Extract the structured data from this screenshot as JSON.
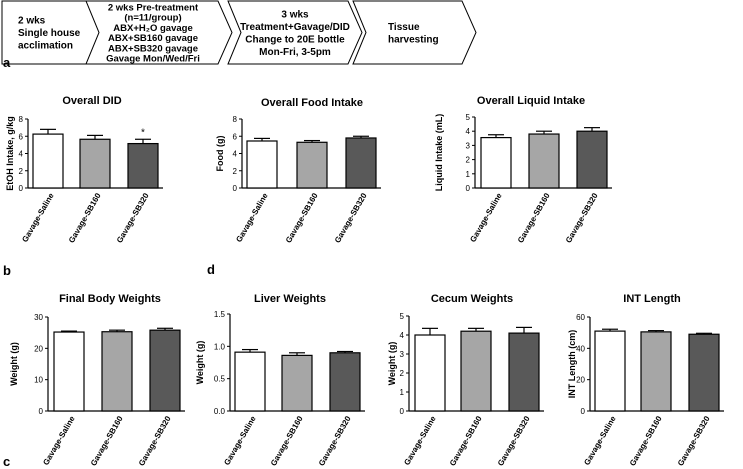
{
  "timeline": {
    "steps": [
      {
        "lines": [
          "2 wks",
          "Single house",
          "acclimation"
        ]
      },
      {
        "lines": [
          "2 wks Pre-treatment",
          "(n=11/group)",
          "ABX+H₂O gavage",
          "ABX+SB160 gavage",
          "ABX+SB320 gavage",
          "Gavage Mon/Wed/Fri"
        ]
      },
      {
        "lines": [
          "3 wks",
          "Treatment+Gavage/DID",
          "Change to 20E bottle",
          "Mon-Fri, 3-5pm"
        ]
      },
      {
        "lines": [
          "Tissue",
          "harvesting"
        ]
      }
    ]
  },
  "panel_letters": {
    "a": "a",
    "b": "b",
    "c": "c",
    "d": "d"
  },
  "colors": {
    "saline": "#ffffff",
    "sb160": "#a6a6a6",
    "sb320": "#595959",
    "stroke": "#000000"
  },
  "chart_data": [
    {
      "id": "did",
      "type": "bar",
      "title": "Overall DID",
      "xlabel": "",
      "ylabel": "EtOH Intake, g/kg",
      "categories": [
        "Gavage-Saline",
        "Gavage-SB160",
        "Gavage-SB320"
      ],
      "values": [
        6.25,
        5.65,
        5.15
      ],
      "errors": [
        0.55,
        0.45,
        0.5
      ],
      "ylim": [
        0,
        8
      ],
      "yticks": [
        "0",
        "2",
        "4",
        "6",
        "8"
      ],
      "annotations": [
        "",
        "",
        "*"
      ]
    },
    {
      "id": "food",
      "type": "bar",
      "title": "Overall Food Intake",
      "xlabel": "",
      "ylabel": "Food (g)",
      "categories": [
        "Gavage-Saline",
        "Gavage-SB160",
        "Gavage-SB320"
      ],
      "values": [
        5.45,
        5.3,
        5.8
      ],
      "errors": [
        0.3,
        0.2,
        0.2
      ],
      "ylim": [
        0,
        8
      ],
      "yticks": [
        "0",
        "2",
        "4",
        "6",
        "8"
      ],
      "annotations": [
        "",
        "",
        ""
      ]
    },
    {
      "id": "liquid",
      "type": "bar",
      "title": "Overall Liquid Intake",
      "xlabel": "",
      "ylabel": "Liquid Intake (mL)",
      "categories": [
        "Gavage-Saline",
        "Gavage-SB160",
        "Gavage-SB320"
      ],
      "values": [
        3.55,
        3.8,
        4.0
      ],
      "errors": [
        0.2,
        0.2,
        0.25
      ],
      "ylim": [
        0,
        5
      ],
      "yticks": [
        "0",
        "1",
        "2",
        "3",
        "4",
        "5"
      ],
      "annotations": [
        "",
        "",
        ""
      ]
    },
    {
      "id": "body",
      "type": "bar",
      "title": "Final Body Weights",
      "xlabel": "",
      "ylabel": "Weight (g)",
      "categories": [
        "Gavage-Saline",
        "Gavage-SB160",
        "Gavage-SB320"
      ],
      "values": [
        25.2,
        25.3,
        25.8
      ],
      "errors": [
        0.3,
        0.5,
        0.6
      ],
      "ylim": [
        0,
        30
      ],
      "yticks": [
        "0",
        "10",
        "20",
        "30"
      ],
      "annotations": [
        "",
        "",
        ""
      ]
    },
    {
      "id": "liver",
      "type": "bar",
      "title": "Liver Weights",
      "xlabel": "",
      "ylabel": "Weight (g)",
      "categories": [
        "Gavage-Saline",
        "Gavage-SB160",
        "Gavage-SB320"
      ],
      "values": [
        0.91,
        0.86,
        0.9
      ],
      "errors": [
        0.04,
        0.04,
        0.02
      ],
      "ylim": [
        0,
        1.5
      ],
      "yticks": [
        "0.0",
        "0.5",
        "1.0",
        "1.5"
      ],
      "annotations": [
        "",
        "",
        ""
      ]
    },
    {
      "id": "cecum",
      "type": "bar",
      "title": "Cecum Weights",
      "xlabel": "",
      "ylabel": "Weight (g)",
      "categories": [
        "Gavage-Saline",
        "Gavage-SB160",
        "Gavage-SB320"
      ],
      "values": [
        4.0,
        4.2,
        4.1
      ],
      "errors": [
        0.35,
        0.15,
        0.3
      ],
      "ylim": [
        0,
        5
      ],
      "yticks": [
        "0",
        "1",
        "2",
        "3",
        "4",
        "5"
      ],
      "annotations": [
        "",
        "",
        ""
      ]
    },
    {
      "id": "int",
      "type": "bar",
      "title": "INT Length",
      "xlabel": "",
      "ylabel": "INT Length (cm)",
      "categories": [
        "Gavage-Saline",
        "Gavage-SB160",
        "Gavage-SB320"
      ],
      "values": [
        51,
        50.5,
        49
      ],
      "errors": [
        1.2,
        0.8,
        0.6
      ],
      "ylim": [
        0,
        60
      ],
      "yticks": [
        "0",
        "20",
        "40",
        "60"
      ],
      "annotations": [
        "",
        "",
        ""
      ]
    }
  ]
}
